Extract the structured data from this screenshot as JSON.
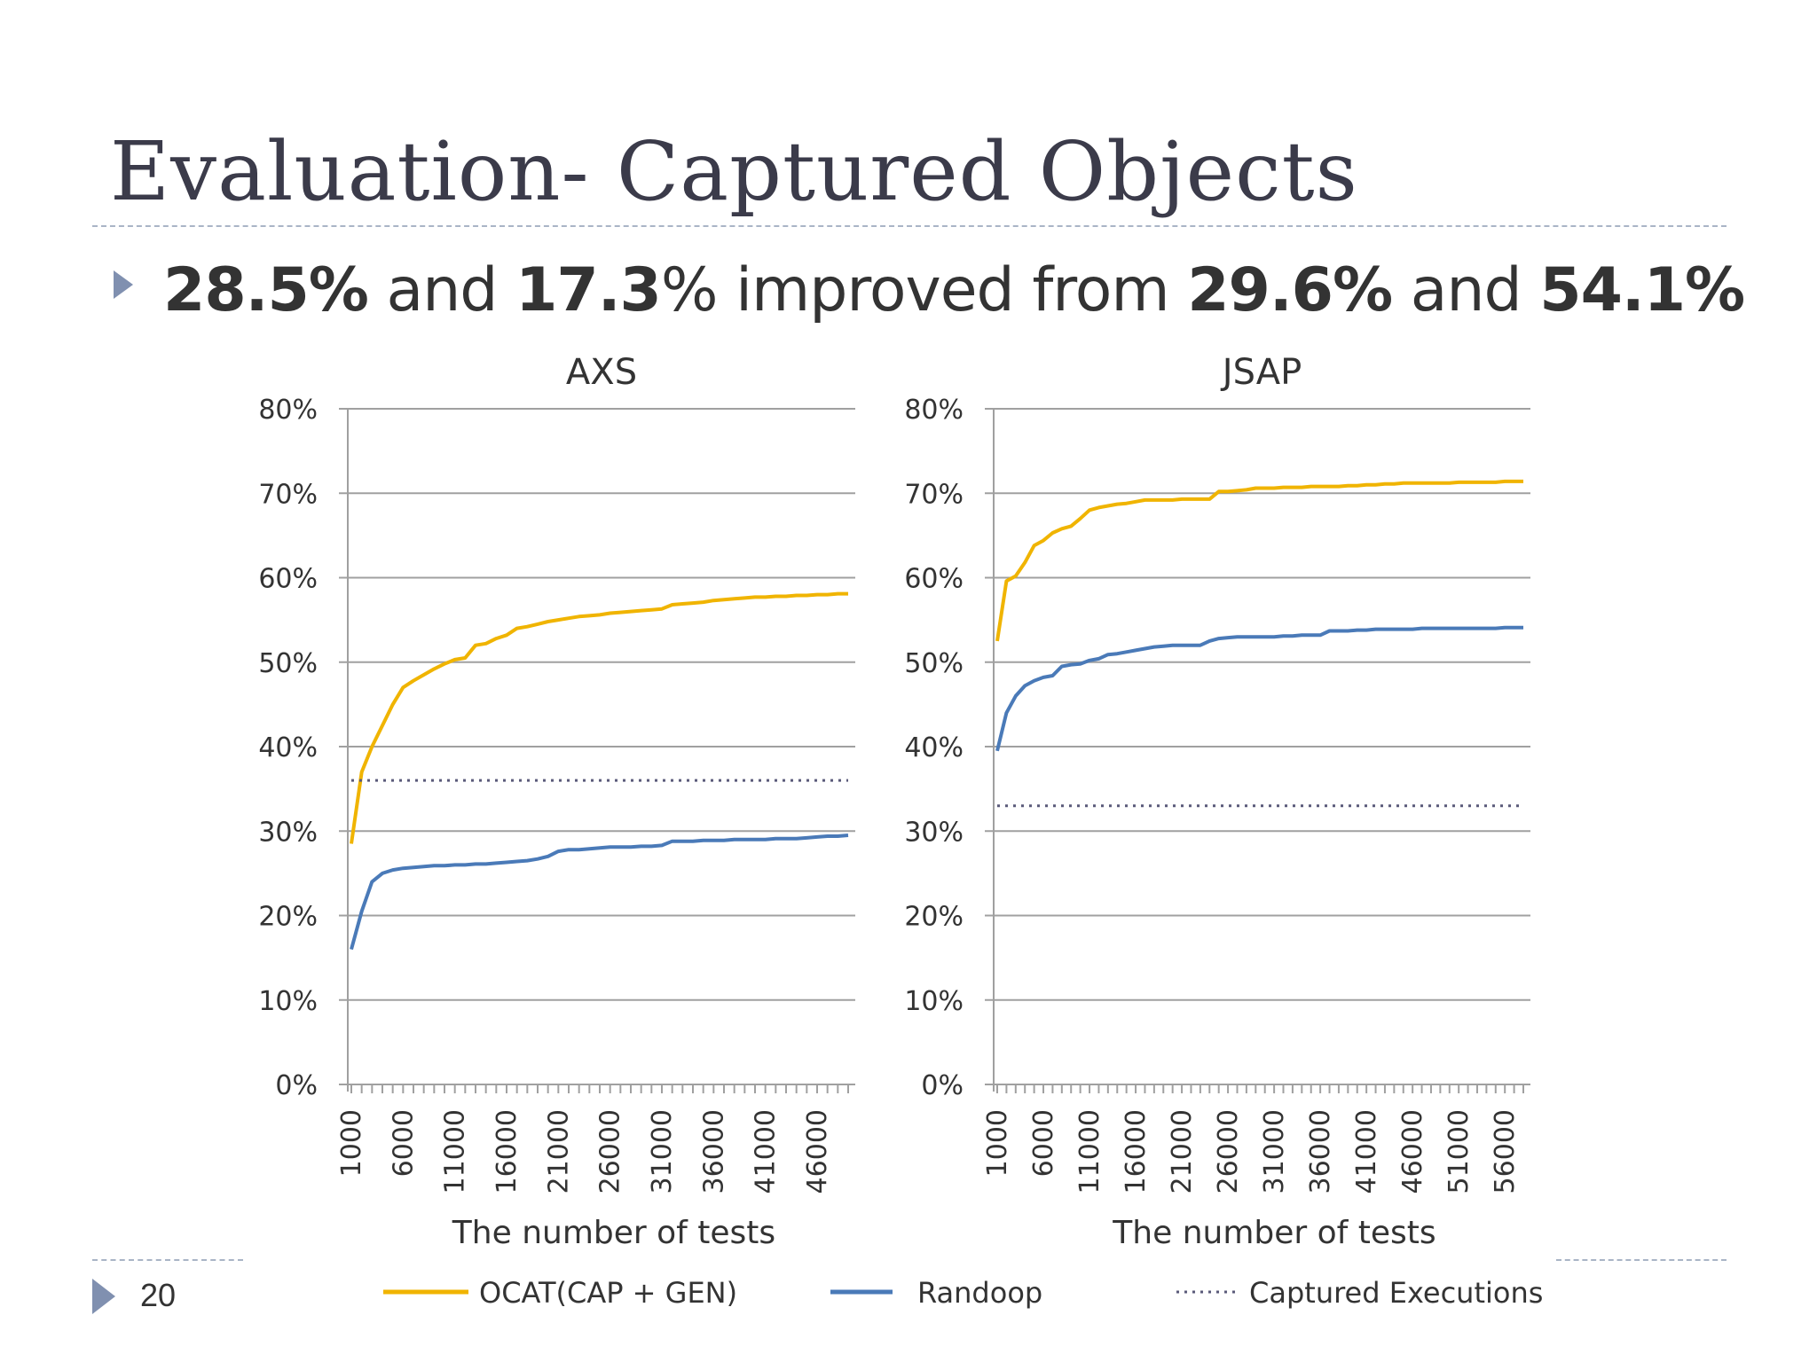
{
  "slide": {
    "title": "Evaluation- Captured Objects",
    "page_number": "20"
  },
  "bullet": {
    "part1_bold": "28.5%",
    "part2": " and ",
    "part3_bold": "17.3",
    "part4": "% improved from ",
    "part5_bold": "29.6%",
    "part6": " and ",
    "part7_bold": "54.1%"
  },
  "colors": {
    "ocat": "#f0b400",
    "randoop": "#4a7ab8",
    "captured": "#5a5a7a",
    "grid": "#a0a0a0",
    "accent": "#8090b0"
  },
  "legend": {
    "ocat": "OCAT(CAP + GEN)",
    "randoop": "Randoop",
    "captured": "Captured Executions"
  },
  "chart_data": [
    {
      "type": "line",
      "title": "AXS",
      "xlabel": "The number of tests",
      "ylabel": "",
      "ylim": [
        0,
        80
      ],
      "yticks": [
        "0%",
        "10%",
        "20%",
        "30%",
        "40%",
        "50%",
        "60%",
        "70%",
        "80%"
      ],
      "xticks": [
        "1000",
        "6000",
        "11000",
        "16000",
        "21000",
        "26000",
        "31000",
        "36000",
        "41000",
        "46000"
      ],
      "xlim": [
        1000,
        49000
      ],
      "grid": true,
      "legend_position": "bottom",
      "series": [
        {
          "name": "OCAT(CAP + GEN)",
          "x": [
            1000,
            2000,
            3000,
            4000,
            5000,
            6000,
            7000,
            8000,
            9000,
            10000,
            11000,
            12000,
            13000,
            14000,
            15000,
            16000,
            17000,
            18000,
            19000,
            20000,
            21000,
            22000,
            23000,
            24000,
            25000,
            26000,
            27000,
            28000,
            29000,
            30000,
            31000,
            32000,
            33000,
            34000,
            35000,
            36000,
            37000,
            38000,
            39000,
            40000,
            41000,
            42000,
            43000,
            44000,
            45000,
            46000,
            47000,
            48000,
            49000
          ],
          "y": [
            28.5,
            37,
            40,
            42.5,
            45,
            47,
            47.8,
            48.5,
            49.2,
            49.8,
            50.3,
            50.5,
            52,
            52.2,
            52.8,
            53.2,
            54,
            54.2,
            54.5,
            54.8,
            55,
            55.2,
            55.4,
            55.5,
            55.6,
            55.8,
            55.9,
            56,
            56.1,
            56.2,
            56.3,
            56.8,
            56.9,
            57,
            57.1,
            57.3,
            57.4,
            57.5,
            57.6,
            57.7,
            57.7,
            57.8,
            57.8,
            57.9,
            57.9,
            58,
            58,
            58.1,
            58.1
          ]
        },
        {
          "name": "Randoop",
          "x": [
            1000,
            2000,
            3000,
            4000,
            5000,
            6000,
            7000,
            8000,
            9000,
            10000,
            11000,
            12000,
            13000,
            14000,
            15000,
            16000,
            17000,
            18000,
            19000,
            20000,
            21000,
            22000,
            23000,
            24000,
            25000,
            26000,
            27000,
            28000,
            29000,
            30000,
            31000,
            32000,
            33000,
            34000,
            35000,
            36000,
            37000,
            38000,
            39000,
            40000,
            41000,
            42000,
            43000,
            44000,
            45000,
            46000,
            47000,
            48000,
            49000
          ],
          "y": [
            16,
            20.5,
            24,
            25,
            25.4,
            25.6,
            25.7,
            25.8,
            25.9,
            25.9,
            26,
            26,
            26.1,
            26.1,
            26.2,
            26.3,
            26.4,
            26.5,
            26.7,
            27,
            27.6,
            27.8,
            27.8,
            27.9,
            28,
            28.1,
            28.1,
            28.1,
            28.2,
            28.2,
            28.3,
            28.8,
            28.8,
            28.8,
            28.9,
            28.9,
            28.9,
            29,
            29,
            29,
            29,
            29.1,
            29.1,
            29.1,
            29.2,
            29.3,
            29.4,
            29.4,
            29.5
          ]
        },
        {
          "name": "Captured Executions",
          "x": [
            1000,
            49000
          ],
          "y": [
            36,
            36
          ]
        }
      ]
    },
    {
      "type": "line",
      "title": "JSAP",
      "xlabel": "The number of tests",
      "ylabel": "",
      "ylim": [
        0,
        80
      ],
      "yticks": [
        "0%",
        "10%",
        "20%",
        "30%",
        "40%",
        "50%",
        "60%",
        "70%",
        "80%"
      ],
      "xticks": [
        "1000",
        "6000",
        "11000",
        "16000",
        "21000",
        "26000",
        "31000",
        "36000",
        "41000",
        "46000",
        "51000",
        "56000"
      ],
      "xlim": [
        1000,
        58000
      ],
      "grid": true,
      "legend_position": "bottom",
      "series": [
        {
          "name": "OCAT(CAP + GEN)",
          "x": [
            1000,
            2000,
            3000,
            4000,
            5000,
            6000,
            7000,
            8000,
            9000,
            10000,
            11000,
            12000,
            13000,
            14000,
            15000,
            16000,
            17000,
            18000,
            19000,
            20000,
            21000,
            22000,
            23000,
            24000,
            25000,
            26000,
            27000,
            28000,
            29000,
            30000,
            31000,
            32000,
            33000,
            34000,
            35000,
            36000,
            37000,
            38000,
            39000,
            40000,
            41000,
            42000,
            43000,
            44000,
            45000,
            46000,
            47000,
            48000,
            49000,
            50000,
            51000,
            52000,
            53000,
            54000,
            55000,
            56000,
            57000,
            58000
          ],
          "y": [
            52.5,
            59.6,
            60.2,
            61.8,
            63.8,
            64.4,
            65.3,
            65.8,
            66.1,
            67,
            68,
            68.3,
            68.5,
            68.7,
            68.8,
            69,
            69.2,
            69.2,
            69.2,
            69.2,
            69.3,
            69.3,
            69.3,
            69.3,
            70.2,
            70.2,
            70.3,
            70.4,
            70.6,
            70.6,
            70.6,
            70.7,
            70.7,
            70.7,
            70.8,
            70.8,
            70.8,
            70.8,
            70.9,
            70.9,
            71,
            71,
            71.1,
            71.1,
            71.2,
            71.2,
            71.2,
            71.2,
            71.2,
            71.2,
            71.3,
            71.3,
            71.3,
            71.3,
            71.3,
            71.4,
            71.4,
            71.4
          ]
        },
        {
          "name": "Randoop",
          "x": [
            1000,
            2000,
            3000,
            4000,
            5000,
            6000,
            7000,
            8000,
            9000,
            10000,
            11000,
            12000,
            13000,
            14000,
            15000,
            16000,
            17000,
            18000,
            19000,
            20000,
            21000,
            22000,
            23000,
            24000,
            25000,
            26000,
            27000,
            28000,
            29000,
            30000,
            31000,
            32000,
            33000,
            34000,
            35000,
            36000,
            37000,
            38000,
            39000,
            40000,
            41000,
            42000,
            43000,
            44000,
            45000,
            46000,
            47000,
            48000,
            49000,
            50000,
            51000,
            52000,
            53000,
            54000,
            55000,
            56000,
            57000,
            58000
          ],
          "y": [
            39.5,
            44,
            46,
            47.2,
            47.8,
            48.2,
            48.4,
            49.5,
            49.7,
            49.8,
            50.2,
            50.4,
            50.9,
            51,
            51.2,
            51.4,
            51.6,
            51.8,
            51.9,
            52,
            52,
            52,
            52,
            52.5,
            52.8,
            52.9,
            53,
            53,
            53,
            53,
            53,
            53.1,
            53.1,
            53.2,
            53.2,
            53.2,
            53.7,
            53.7,
            53.7,
            53.8,
            53.8,
            53.9,
            53.9,
            53.9,
            53.9,
            53.9,
            54,
            54,
            54,
            54,
            54,
            54,
            54,
            54,
            54,
            54.1,
            54.1,
            54.1
          ]
        },
        {
          "name": "Captured Executions",
          "x": [
            1000,
            58000
          ],
          "y": [
            33,
            33
          ]
        }
      ]
    }
  ]
}
